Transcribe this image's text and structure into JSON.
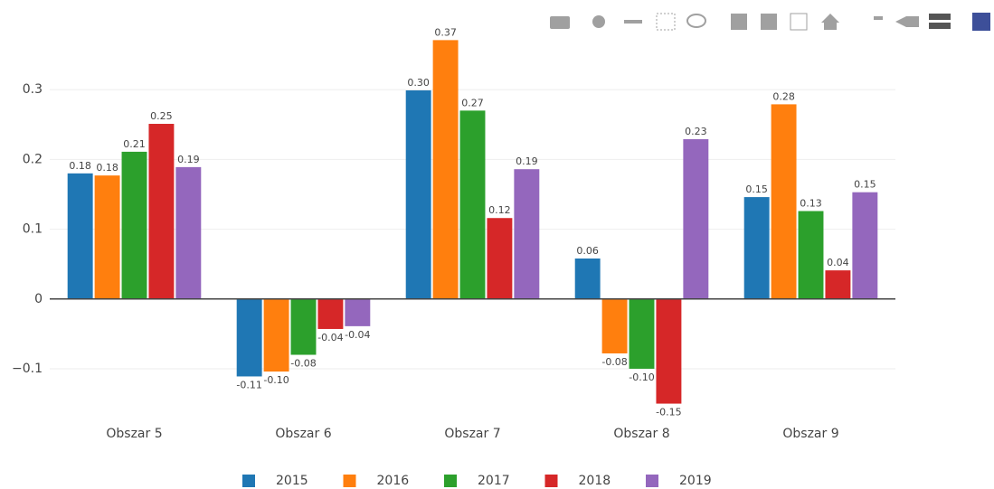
{
  "chart_data": {
    "type": "bar",
    "categories": [
      "Obszar 5",
      "Obszar 6",
      "Obszar 7",
      "Obszar 8",
      "Obszar 9"
    ],
    "series": [
      {
        "name": "2015",
        "color": "#1f77b4",
        "values": [
          0.18,
          -0.111,
          0.299,
          0.058,
          0.146
        ],
        "value_labels": [
          "0.18",
          "-0.11",
          "0.30",
          "0.06",
          "0.15"
        ]
      },
      {
        "name": "2016",
        "color": "#ff7f0e",
        "values": [
          0.177,
          -0.104,
          0.371,
          -0.078,
          0.279
        ],
        "value_labels": [
          "0.18",
          "-0.10",
          "0.37",
          "-0.08",
          "0.28"
        ]
      },
      {
        "name": "2017",
        "color": "#2ca02c",
        "values": [
          0.211,
          -0.08,
          0.27,
          -0.1,
          0.126
        ],
        "value_labels": [
          "0.21",
          "-0.08",
          "0.27",
          "-0.10",
          "0.13"
        ]
      },
      {
        "name": "2018",
        "color": "#d62728",
        "values": [
          0.251,
          -0.043,
          0.116,
          -0.15,
          0.041
        ],
        "value_labels": [
          "0.25",
          "-0.04",
          "0.12",
          "-0.15",
          "0.04"
        ]
      },
      {
        "name": "2019",
        "color": "#9467bd",
        "values": [
          0.189,
          -0.039,
          0.186,
          0.229,
          0.153
        ],
        "value_labels": [
          "0.19",
          "-0.04",
          "0.19",
          "0.23",
          "0.15"
        ]
      }
    ],
    "ylim": [
      -0.17,
      0.4
    ],
    "yticks": [
      {
        "value": -0.1,
        "label": "−0.1"
      },
      0,
      0.1,
      0.2,
      0.3
    ],
    "grid": true,
    "legend": "bottom"
  }
}
